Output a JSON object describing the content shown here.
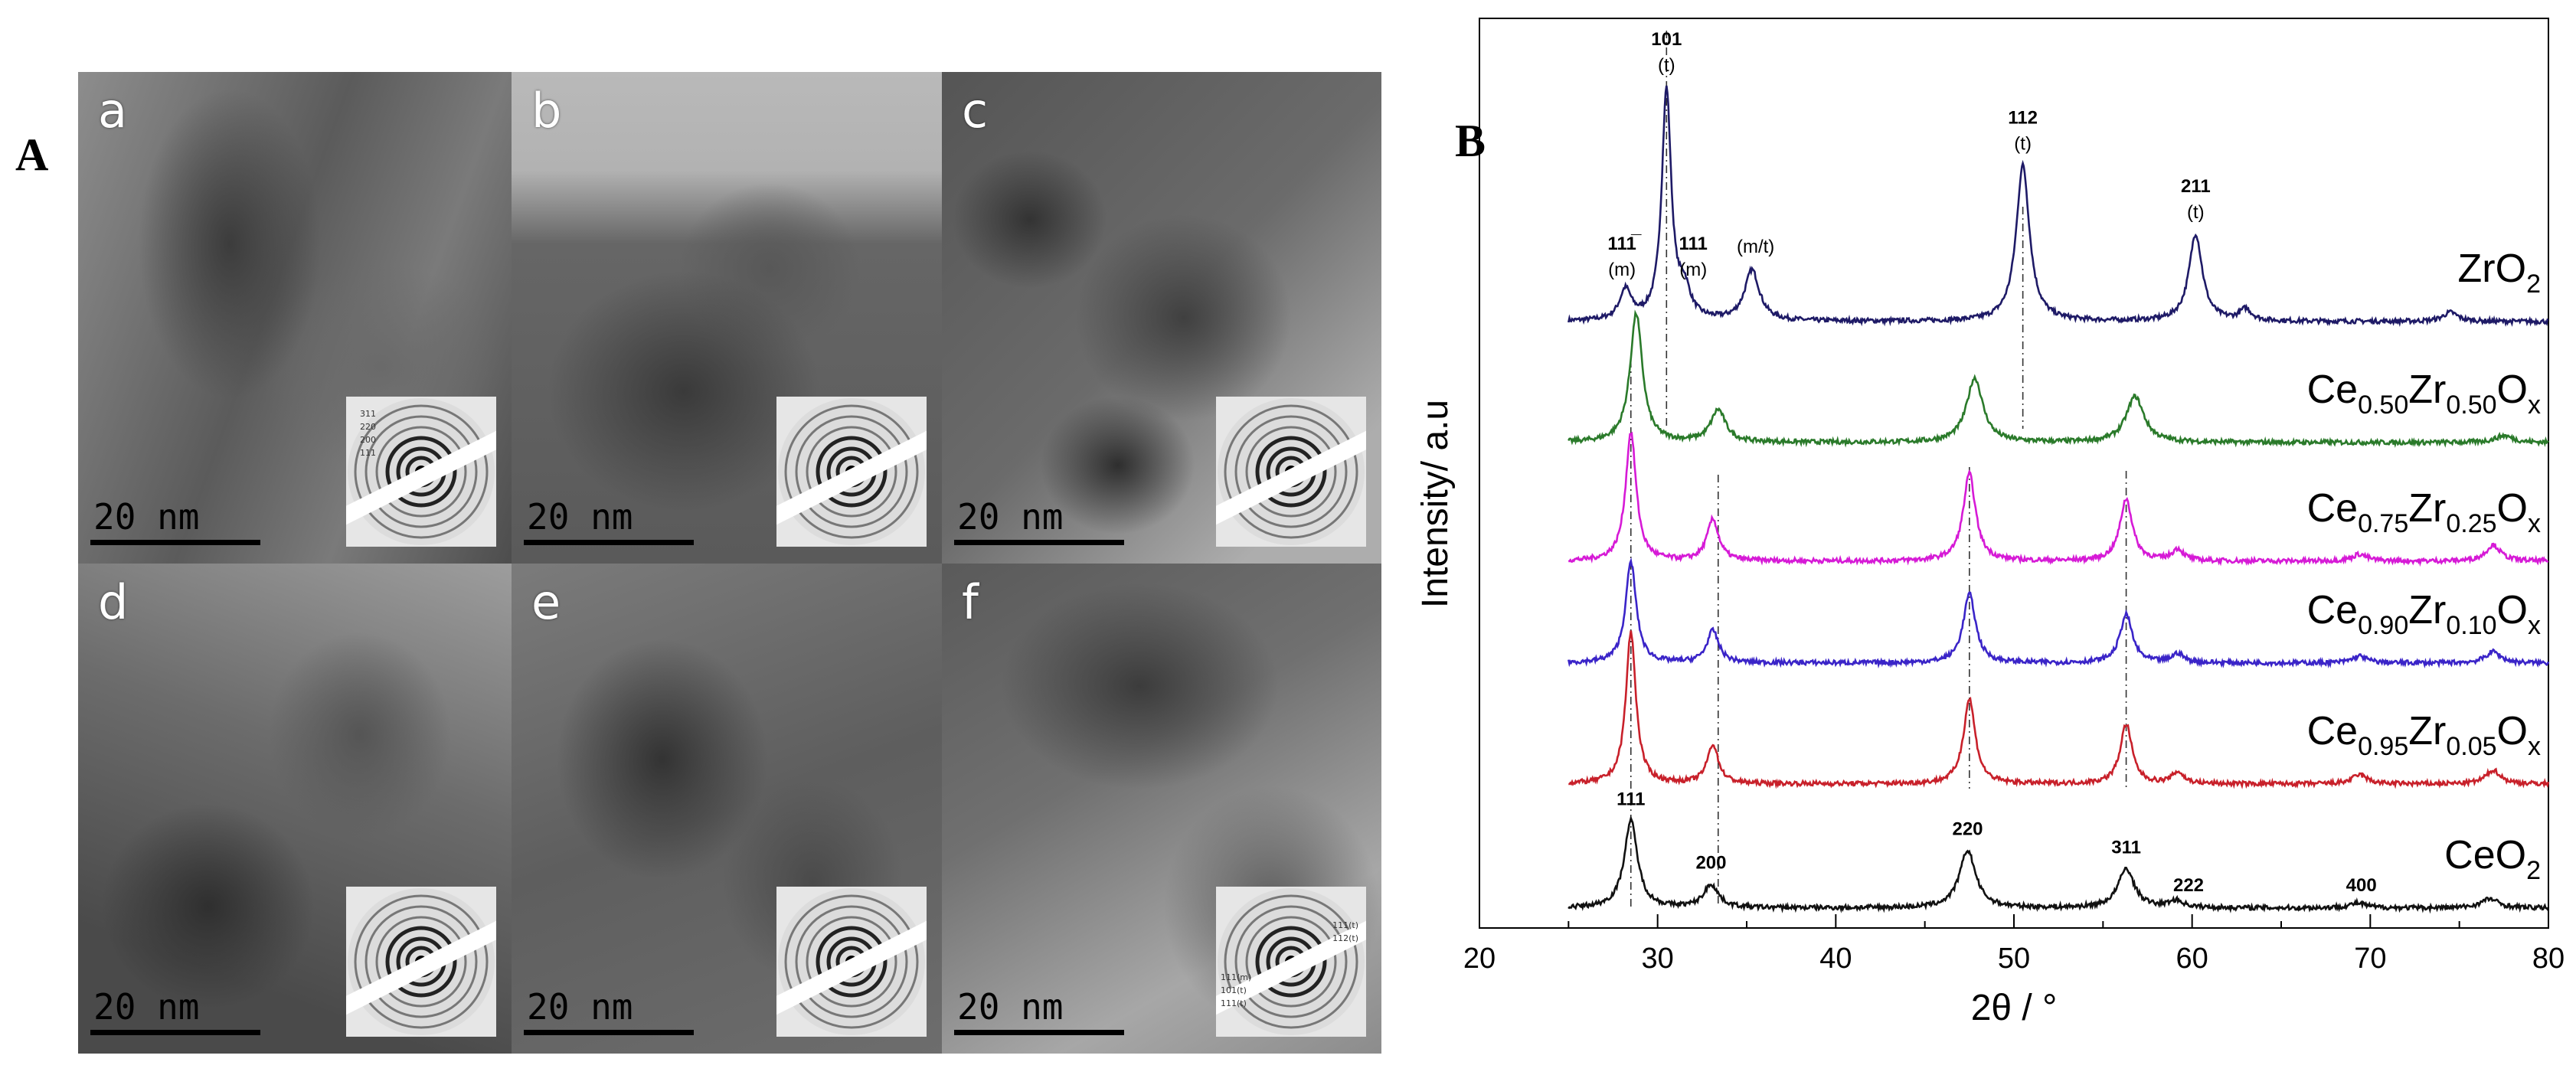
{
  "panel_a": {
    "letter": "A",
    "images": [
      {
        "label": "a",
        "scale": "20 nm",
        "saed_labels": [
          "311",
          "220",
          "200",
          "111"
        ]
      },
      {
        "label": "b",
        "scale": "20 nm",
        "saed_labels": []
      },
      {
        "label": "c",
        "scale": "20 nm",
        "saed_labels": []
      },
      {
        "label": "d",
        "scale": "20 nm",
        "saed_labels": []
      },
      {
        "label": "e",
        "scale": "20 nm",
        "saed_labels": []
      },
      {
        "label": "f",
        "scale": "20 nm",
        "saed_labels": [
          "111(t)",
          "112(t)",
          "111(m)",
          "101(t)",
          "111(t)"
        ]
      }
    ]
  },
  "panel_b": {
    "letter": "B"
  },
  "colors": {
    "ZrO2": "#1e1a66",
    "Ce0.50": "#2a7a2a",
    "Ce0.75": "#d61ad6",
    "Ce0.90": "#3a24c8",
    "Ce0.95": "#c8202a",
    "CeO2": "#111111"
  },
  "chart_data": {
    "type": "line",
    "xlabel": "2θ / °",
    "ylabel": "Intensity/ a.u",
    "xlim": [
      20,
      80
    ],
    "xticks": [
      20,
      30,
      40,
      50,
      60,
      70,
      80
    ],
    "grid": false,
    "series": [
      {
        "name": "ZrO2",
        "name_main": "ZrO",
        "name_sub": "2",
        "color": "#1e1a66",
        "baseline": 0.0,
        "peaks": [
          [
            28.2,
            0.13,
            0.4
          ],
          [
            30.5,
            1.0,
            0.32
          ],
          [
            31.5,
            0.12,
            0.4
          ],
          [
            35.3,
            0.22,
            0.5
          ],
          [
            50.5,
            0.68,
            0.45
          ],
          [
            60.2,
            0.38,
            0.45
          ],
          [
            63.0,
            0.05,
            0.4
          ],
          [
            74.5,
            0.04,
            0.5
          ]
        ]
      },
      {
        "name": "Ce0.50Zr0.50Ox",
        "name_main": "Ce",
        "name_parts": [
          "0.50",
          "Zr",
          "0.50",
          "O",
          "x"
        ],
        "color": "#2a7a2a",
        "baseline": 0.0,
        "peaks": [
          [
            28.8,
            0.56,
            0.42
          ],
          [
            33.4,
            0.14,
            0.5
          ],
          [
            47.8,
            0.28,
            0.55
          ],
          [
            56.8,
            0.2,
            0.6
          ],
          [
            77.5,
            0.03,
            0.6
          ]
        ]
      },
      {
        "name": "Ce0.75Zr0.25Ox",
        "name_main": "Ce",
        "name_parts": [
          "0.75",
          "Zr",
          "0.25",
          "O",
          "x"
        ],
        "color": "#d61ad6",
        "baseline": 0.0,
        "peaks": [
          [
            28.5,
            0.56,
            0.36
          ],
          [
            33.1,
            0.18,
            0.4
          ],
          [
            47.5,
            0.38,
            0.42
          ],
          [
            56.3,
            0.27,
            0.42
          ],
          [
            59.2,
            0.05,
            0.4
          ],
          [
            69.4,
            0.03,
            0.5
          ],
          [
            76.9,
            0.07,
            0.5
          ]
        ]
      },
      {
        "name": "Ce0.90Zr0.10Ox",
        "name_main": "Ce",
        "name_parts": [
          "0.90",
          "Zr",
          "0.10",
          "O",
          "x"
        ],
        "color": "#3a24c8",
        "baseline": 0.0,
        "peaks": [
          [
            28.5,
            0.44,
            0.36
          ],
          [
            33.1,
            0.14,
            0.4
          ],
          [
            47.5,
            0.3,
            0.42
          ],
          [
            56.3,
            0.21,
            0.42
          ],
          [
            59.2,
            0.04,
            0.4
          ],
          [
            69.4,
            0.03,
            0.5
          ],
          [
            76.9,
            0.05,
            0.5
          ]
        ]
      },
      {
        "name": "Ce0.95Zr0.05Ox",
        "name_main": "Ce",
        "name_parts": [
          "0.95",
          "Zr",
          "0.05",
          "O",
          "x"
        ],
        "color": "#c8202a",
        "baseline": 0.0,
        "peaks": [
          [
            28.5,
            0.66,
            0.34
          ],
          [
            33.1,
            0.17,
            0.38
          ],
          [
            47.5,
            0.37,
            0.4
          ],
          [
            56.3,
            0.26,
            0.4
          ],
          [
            59.2,
            0.05,
            0.4
          ],
          [
            69.4,
            0.04,
            0.5
          ],
          [
            76.9,
            0.06,
            0.5
          ]
        ]
      },
      {
        "name": "CeO2",
        "name_main": "CeO",
        "name_sub": "2",
        "color": "#111111",
        "baseline": 0.0,
        "peaks": [
          [
            28.5,
            0.38,
            0.45
          ],
          [
            33.0,
            0.1,
            0.5
          ],
          [
            47.4,
            0.25,
            0.55
          ],
          [
            56.3,
            0.17,
            0.55
          ],
          [
            59.1,
            0.03,
            0.5
          ],
          [
            69.3,
            0.02,
            0.6
          ],
          [
            76.7,
            0.04,
            0.6
          ]
        ]
      }
    ],
    "peak_labels": [
      {
        "series": "ZrO2",
        "x": 30.5,
        "hkl": "101",
        "phase": "(t)"
      },
      {
        "series": "ZrO2",
        "x": 28.2,
        "hkl": "111̅",
        "phase": "(m)"
      },
      {
        "series": "ZrO2",
        "x": 31.5,
        "hkl": "111",
        "phase": "(m)"
      },
      {
        "series": "ZrO2",
        "x": 35.3,
        "hkl": "",
        "phase": "(m/t)"
      },
      {
        "series": "ZrO2",
        "x": 50.5,
        "hkl": "112",
        "phase": "(t)"
      },
      {
        "series": "ZrO2",
        "x": 60.2,
        "hkl": "211",
        "phase": "(t)"
      },
      {
        "series": "CeO2",
        "x": 28.5,
        "hkl": "111",
        "phase": ""
      },
      {
        "series": "CeO2",
        "x": 33.0,
        "hkl": "200",
        "phase": ""
      },
      {
        "series": "CeO2",
        "x": 47.4,
        "hkl": "220",
        "phase": ""
      },
      {
        "series": "CeO2",
        "x": 56.3,
        "hkl": "311",
        "phase": ""
      },
      {
        "series": "CeO2",
        "x": 59.1,
        "hkl": "222",
        "phase": ""
      },
      {
        "series": "CeO2",
        "x": 69.3,
        "hkl": "400",
        "phase": ""
      }
    ],
    "reference_lines": [
      28.5,
      30.5,
      33.4,
      47.5,
      50.5,
      56.3
    ]
  }
}
